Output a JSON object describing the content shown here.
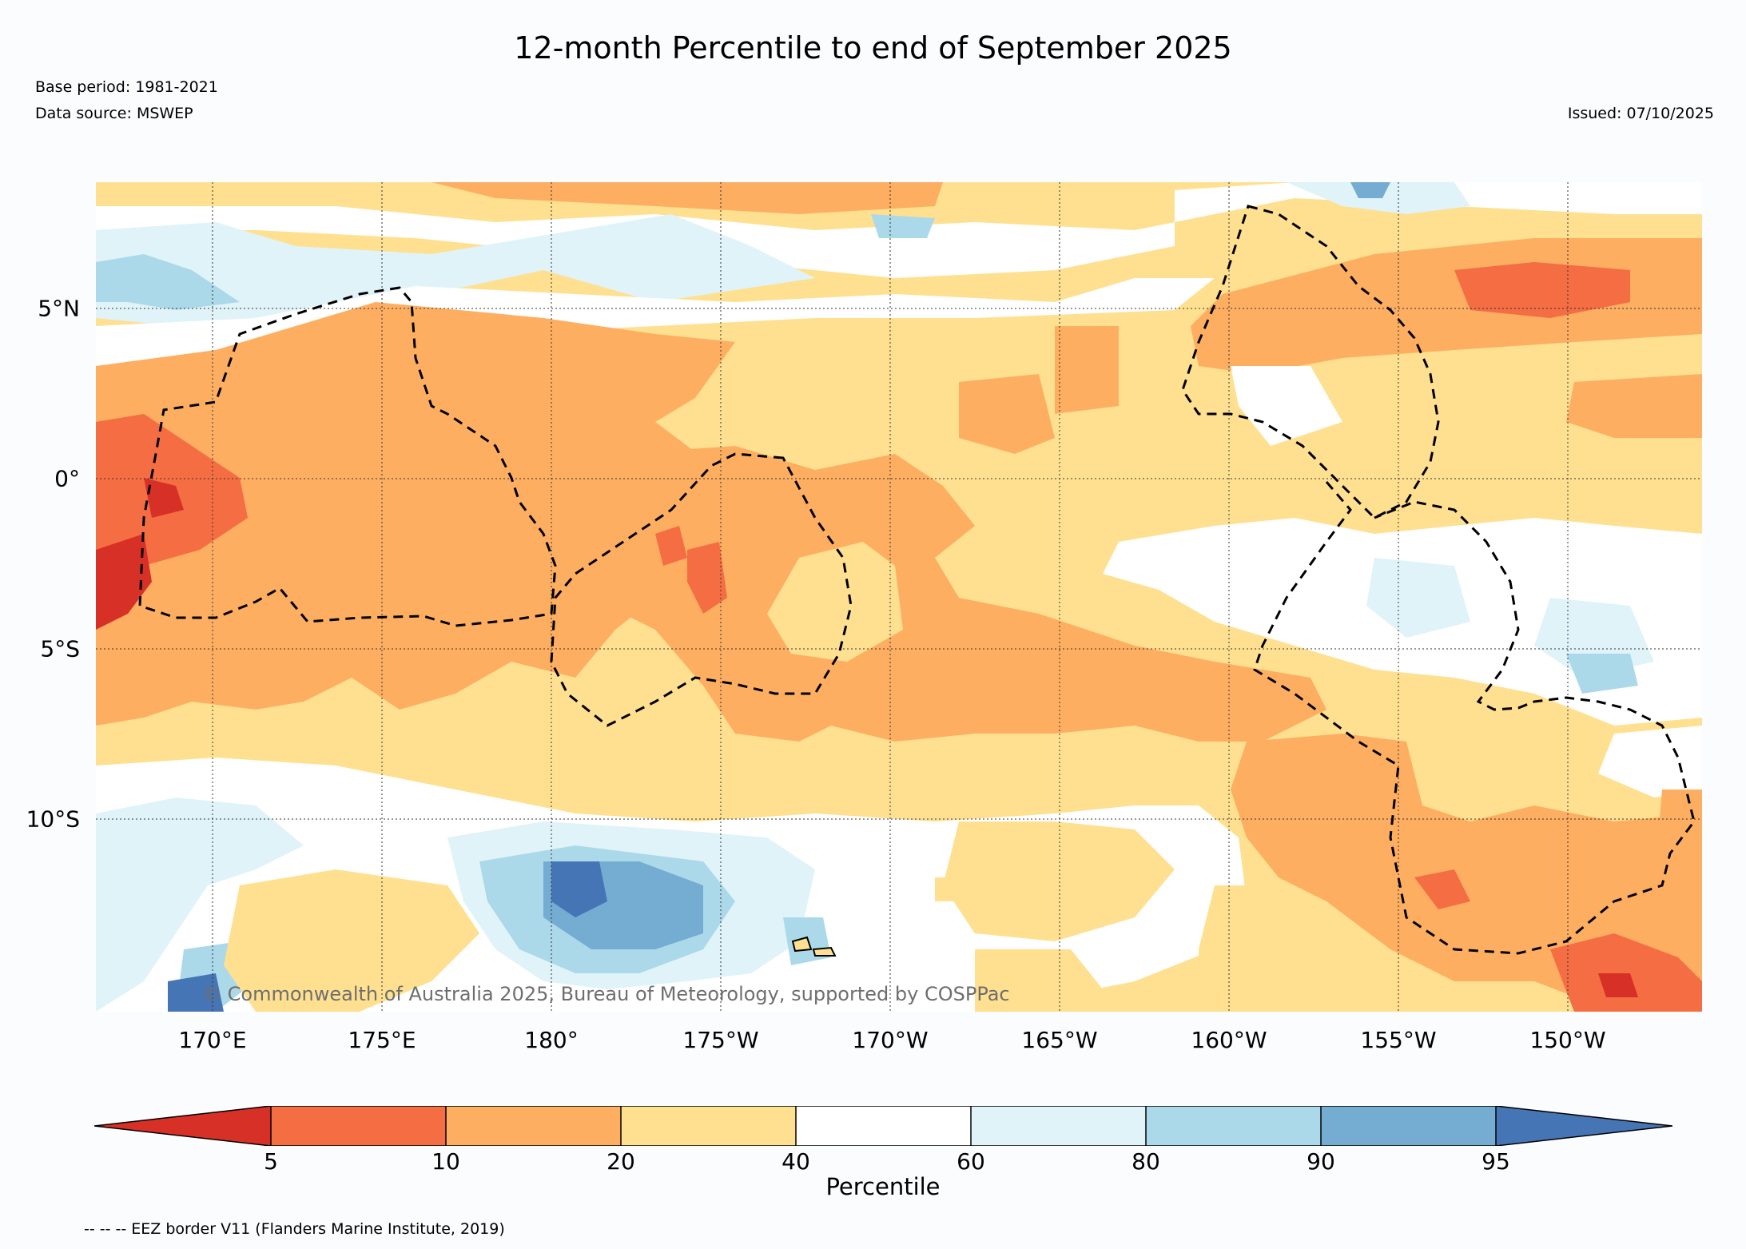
{
  "title": "12-month Percentile to end of September 2025",
  "base_period": "Base period: 1981-2021",
  "data_source": "Data source: MSWEP",
  "issued": "Issued: 07/10/2025",
  "credit": "© Commonwealth of Australia 2025, Bureau of Meteorology, supported by COSPPac",
  "footnote": "-- -- -- EEZ border V11 (Flanders Marine Institute, 2019)",
  "map": {
    "lon_ticks": [
      "170°E",
      "175°E",
      "180°",
      "175°W",
      "170°W",
      "165°W",
      "160°W",
      "155°W",
      "150°W"
    ],
    "lat_ticks": [
      "5°N",
      "0°",
      "5°S",
      "10°S"
    ]
  },
  "colorbar": {
    "label": "Percentile",
    "ticks": [
      "5",
      "10",
      "20",
      "40",
      "60",
      "80",
      "90",
      "95"
    ],
    "colors": [
      "#d73027",
      "#f46d43",
      "#fdae61",
      "#fee090",
      "#ffffff",
      "#e0f3f8",
      "#abd9e9",
      "#74add1",
      "#4575b4"
    ]
  },
  "legend_colors": {
    "p0_5": "#d73027",
    "p5_10": "#f46d43",
    "p10_20": "#fdae61",
    "p20_40": "#fee090",
    "p40_60": "#ffffff",
    "p60_80": "#e0f3f8",
    "p80_90": "#abd9e9",
    "p90_95": "#74add1",
    "p95_100": "#4575b4"
  }
}
